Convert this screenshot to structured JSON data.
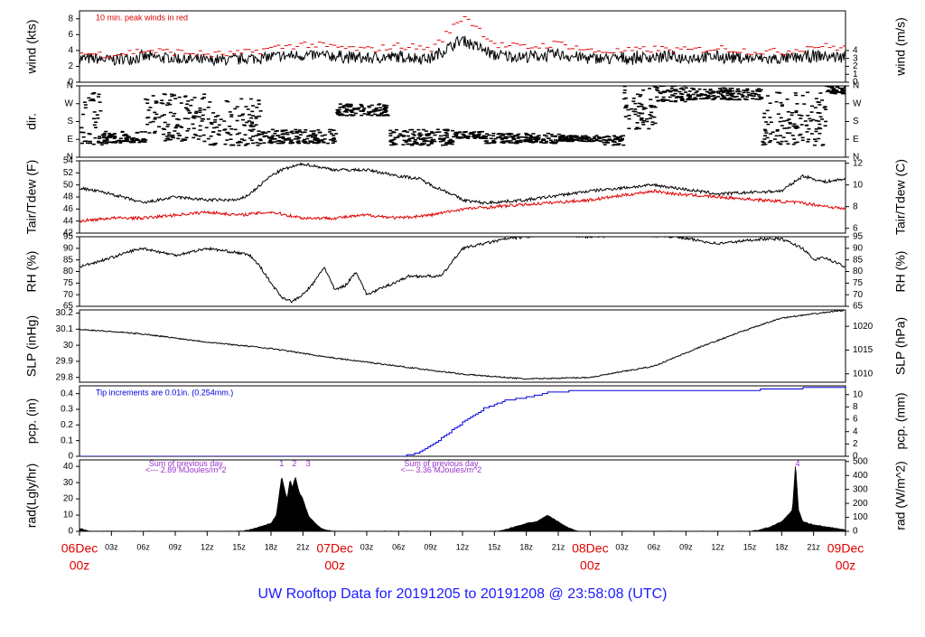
{
  "title": "UW Rooftop Data for 20191205  to  20191208 @ 23:58:08  (UTC)",
  "colors": {
    "text": "#000000",
    "red": "#e00000",
    "blue": "#0000dd",
    "purple": "#9933cc",
    "title": "#1a1aff"
  },
  "time_axis": {
    "hours_total": 72,
    "ticks": [
      {
        "h": 0,
        "l1": "06Dec",
        "l2": "00z",
        "major": true
      },
      {
        "h": 3,
        "l1": "03z"
      },
      {
        "h": 6,
        "l1": "06z"
      },
      {
        "h": 9,
        "l1": "09z"
      },
      {
        "h": 12,
        "l1": "12z"
      },
      {
        "h": 15,
        "l1": "15z"
      },
      {
        "h": 18,
        "l1": "18z"
      },
      {
        "h": 21,
        "l1": "21z"
      },
      {
        "h": 24,
        "l1": "07Dec",
        "l2": "00z",
        "major": true
      },
      {
        "h": 27,
        "l1": "03z"
      },
      {
        "h": 30,
        "l1": "06z"
      },
      {
        "h": 33,
        "l1": "09z"
      },
      {
        "h": 36,
        "l1": "12z"
      },
      {
        "h": 39,
        "l1": "15z"
      },
      {
        "h": 42,
        "l1": "18z"
      },
      {
        "h": 45,
        "l1": "21z"
      },
      {
        "h": 48,
        "l1": "08Dec",
        "l2": "00z",
        "major": true
      },
      {
        "h": 51,
        "l1": "03z"
      },
      {
        "h": 54,
        "l1": "06z"
      },
      {
        "h": 57,
        "l1": "09z"
      },
      {
        "h": 60,
        "l1": "12z"
      },
      {
        "h": 63,
        "l1": "15z"
      },
      {
        "h": 66,
        "l1": "18z"
      },
      {
        "h": 69,
        "l1": "21z"
      },
      {
        "h": 72,
        "l1": "09Dec",
        "l2": "00z",
        "major": true
      }
    ]
  },
  "chart_data": [
    {
      "type": "line",
      "id": "wind",
      "ylabel_left": "wind (kts)",
      "ylabel_right": "wind (m/s)",
      "ylim": [
        0,
        9
      ],
      "left_ticks": [
        0,
        2,
        4,
        6,
        8
      ],
      "right_ticks": [
        {
          "v": 0,
          "l": "0"
        },
        {
          "v": 1,
          "l": "1"
        },
        {
          "v": 2,
          "l": "2"
        },
        {
          "v": 3,
          "l": "3"
        },
        {
          "v": 4,
          "l": "4"
        }
      ],
      "annotation": "10 min. peak winds in red",
      "series": [
        {
          "color": "#000000",
          "x": [
            0,
            3,
            6,
            9,
            12,
            15,
            18,
            21,
            24,
            27,
            30,
            33,
            36,
            39,
            42,
            45,
            48,
            51,
            54,
            57,
            60,
            63,
            66,
            69,
            72
          ],
          "y": [
            3.0,
            2.8,
            3.2,
            3.0,
            2.7,
            2.9,
            3.2,
            3.4,
            3.3,
            3.0,
            3.2,
            3.0,
            5.4,
            3.4,
            3.2,
            3.5,
            3.0,
            3.0,
            3.2,
            3.1,
            3.2,
            3.0,
            2.9,
            3.3,
            3.2
          ]
        },
        {
          "color": "#e00000",
          "x": [
            0,
            3,
            6,
            9,
            12,
            15,
            18,
            21,
            24,
            27,
            30,
            33,
            36,
            39,
            42,
            45,
            48,
            51,
            54,
            57,
            60,
            63,
            66,
            69,
            72
          ],
          "y": [
            3.6,
            3.5,
            4.0,
            3.8,
            3.5,
            3.6,
            4.3,
            4.8,
            4.4,
            4.1,
            4.6,
            4.2,
            8.4,
            4.7,
            4.4,
            4.9,
            3.9,
            3.9,
            4.2,
            4.0,
            4.3,
            3.9,
            3.8,
            4.6,
            4.3
          ]
        }
      ]
    },
    {
      "type": "scatter",
      "id": "dir",
      "ylabel_left": "dir.",
      "ylim": [
        0,
        360
      ],
      "left_ticks": [
        {
          "v": 0,
          "l": "N"
        },
        {
          "v": 90,
          "l": "E"
        },
        {
          "v": 180,
          "l": "S"
        },
        {
          "v": 270,
          "l": "W"
        },
        {
          "v": 360,
          "l": "N"
        }
      ],
      "right_ticks": [
        {
          "v": 0,
          "l": "N"
        },
        {
          "v": 90,
          "l": "E"
        },
        {
          "v": 180,
          "l": "S"
        },
        {
          "v": 270,
          "l": "W"
        },
        {
          "v": 360,
          "l": "N"
        }
      ],
      "segments": [
        [
          0,
          2,
          60,
          340
        ],
        [
          2,
          6,
          70,
          130
        ],
        [
          6,
          12,
          80,
          320
        ],
        [
          12,
          17,
          60,
          300
        ],
        [
          17,
          24,
          70,
          140
        ],
        [
          24,
          29,
          210,
          270
        ],
        [
          29,
          35,
          60,
          140
        ],
        [
          35,
          38,
          95,
          130
        ],
        [
          38,
          45,
          70,
          120
        ],
        [
          45,
          49,
          80,
          110
        ],
        [
          49,
          51,
          60,
          110
        ],
        [
          51,
          54,
          140,
          360
        ],
        [
          54,
          57,
          280,
          360
        ],
        [
          57,
          64,
          290,
          350
        ],
        [
          64,
          70,
          60,
          330
        ],
        [
          70,
          72,
          320,
          360
        ]
      ]
    },
    {
      "type": "line",
      "id": "temp",
      "ylabel_left": "Tair/Tdew (F)",
      "ylabel_right": "Tair/Tdew (C)",
      "ylim": [
        42,
        54
      ],
      "left_ticks": [
        42,
        44,
        46,
        48,
        50,
        52,
        54
      ],
      "right_ticks": [
        {
          "v": 42.8,
          "l": "6"
        },
        {
          "v": 46.4,
          "l": "8"
        },
        {
          "v": 50,
          "l": "10"
        },
        {
          "v": 53.6,
          "l": "12"
        }
      ],
      "series": [
        {
          "name": "Tair",
          "color": "#000000",
          "x": [
            0,
            3,
            6,
            9,
            12,
            15,
            16,
            18,
            19,
            21,
            24,
            27,
            30,
            32,
            33,
            35,
            36,
            38,
            42,
            48,
            54,
            58,
            60,
            66,
            68,
            70,
            72
          ],
          "y": [
            49.5,
            48.5,
            47.0,
            48.0,
            47.5,
            47.5,
            48.5,
            51.5,
            52.5,
            53.5,
            52.5,
            52.5,
            51.5,
            51.0,
            50.0,
            48.5,
            47.5,
            47.0,
            47.5,
            49.0,
            50.0,
            49.0,
            48.5,
            49.0,
            51.5,
            50.5,
            51.0
          ]
        },
        {
          "name": "Tdew",
          "color": "#e00000",
          "x": [
            0,
            3,
            6,
            9,
            12,
            15,
            18,
            21,
            24,
            27,
            30,
            33,
            36,
            40,
            44,
            48,
            52,
            54,
            56,
            60,
            64,
            68,
            70,
            72
          ],
          "y": [
            44.0,
            44.5,
            44.5,
            45.0,
            45.5,
            45.0,
            45.5,
            44.5,
            44.5,
            45.0,
            44.5,
            45.0,
            46.0,
            46.5,
            47.0,
            47.5,
            48.5,
            49.0,
            48.5,
            48.0,
            47.5,
            47.0,
            46.5,
            46.0
          ]
        }
      ]
    },
    {
      "type": "line",
      "id": "rh",
      "ylabel_left": "RH (%)",
      "ylabel_right": "RH (%)",
      "ylim": [
        65,
        95
      ],
      "left_ticks": [
        65,
        70,
        75,
        80,
        85,
        90,
        95
      ],
      "right_ticks": [
        {
          "v": 65,
          "l": "65"
        },
        {
          "v": 70,
          "l": "70"
        },
        {
          "v": 75,
          "l": "75"
        },
        {
          "v": 80,
          "l": "80"
        },
        {
          "v": 85,
          "l": "85"
        },
        {
          "v": 90,
          "l": "90"
        },
        {
          "v": 95,
          "l": "95"
        }
      ],
      "series": [
        {
          "color": "#000000",
          "x": [
            0,
            3,
            5,
            6,
            9,
            12,
            15,
            16,
            17,
            18,
            19,
            20,
            21,
            22,
            23,
            24,
            25,
            26,
            27,
            29,
            30,
            31,
            34,
            36,
            40,
            44,
            48,
            52,
            56,
            60,
            64,
            66,
            68,
            69,
            70,
            71,
            72
          ],
          "y": [
            82,
            86,
            89,
            90,
            87,
            90,
            88,
            87,
            82,
            75,
            69,
            67,
            70,
            75,
            82,
            72,
            74,
            80,
            70,
            74,
            76,
            78,
            78,
            90,
            94,
            96,
            95,
            96,
            95,
            92,
            94,
            94,
            90,
            85,
            86,
            84,
            82
          ]
        }
      ]
    },
    {
      "type": "line",
      "id": "slp",
      "ylabel_left": "SLP (inHg)",
      "ylabel_right": "SLP (hPa)",
      "ylim": [
        29.77,
        30.22
      ],
      "left_ticks": [
        29.8,
        29.9,
        30.0,
        30.1,
        30.2
      ],
      "right_ticks": [
        {
          "v": 29.822,
          "l": "1010"
        },
        {
          "v": 29.97,
          "l": "1015"
        },
        {
          "v": 30.118,
          "l": "1020"
        }
      ],
      "series": [
        {
          "color": "#000000",
          "x": [
            0,
            6,
            12,
            18,
            24,
            30,
            36,
            42,
            48,
            54,
            58,
            62,
            66,
            72
          ],
          "y": [
            30.1,
            30.07,
            30.02,
            29.98,
            29.92,
            29.87,
            29.82,
            29.79,
            29.8,
            29.87,
            29.98,
            30.08,
            30.17,
            30.22
          ]
        }
      ]
    },
    {
      "type": "line",
      "id": "pcp",
      "ylabel_left": "pcp. (in)",
      "ylabel_right": "pcp. (mm)",
      "ylim": [
        0,
        0.45
      ],
      "left_ticks": [
        0,
        0.1,
        0.2,
        0.3,
        0.4
      ],
      "right_ticks": [
        {
          "v": 0,
          "l": "0"
        },
        {
          "v": 0.0787,
          "l": "2"
        },
        {
          "v": 0.1575,
          "l": "4"
        },
        {
          "v": 0.2362,
          "l": "6"
        },
        {
          "v": 0.315,
          "l": "8"
        },
        {
          "v": 0.3937,
          "l": "10"
        }
      ],
      "annotation": "Tip increments are 0.01in. (0.254mm.)",
      "series": [
        {
          "color": "#0000dd",
          "x": [
            0,
            30,
            32,
            34,
            36,
            38,
            40,
            42,
            44,
            46,
            48,
            50,
            52,
            56,
            60,
            64,
            68,
            72
          ],
          "y": [
            0,
            0,
            0.03,
            0.12,
            0.22,
            0.31,
            0.36,
            0.38,
            0.41,
            0.42,
            0.42,
            0.42,
            0.42,
            0.42,
            0.42,
            0.43,
            0.44,
            0.44
          ]
        }
      ]
    },
    {
      "type": "area",
      "id": "rad",
      "ylabel_left": "rad(Lgly/hr)",
      "ylabel_right": "rad (W/m^2)",
      "ylim": [
        0,
        44
      ],
      "left_ticks": [
        0,
        10,
        20,
        30,
        40
      ],
      "right_ticks": [
        {
          "v": 0,
          "l": "0"
        },
        {
          "v": 8.6,
          "l": "100"
        },
        {
          "v": 17.2,
          "l": "200"
        },
        {
          "v": 25.8,
          "l": "300"
        },
        {
          "v": 34.4,
          "l": "400"
        },
        {
          "v": 43,
          "l": "500"
        }
      ],
      "annotations": [
        {
          "text": "Sum of previous day",
          "h": 10,
          "v": 41.5
        },
        {
          "text": "<--- 2.89 MJoules/m^2",
          "h": 10,
          "v": 37.5
        },
        {
          "text": "Sum of previous day",
          "h": 34,
          "v": 41.5
        },
        {
          "text": "<--- 3.36 MJoules/m^2",
          "h": 34,
          "v": 37.5
        },
        {
          "text": "1",
          "h": 19,
          "v": 41.5
        },
        {
          "text": "2",
          "h": 20.2,
          "v": 41.5
        },
        {
          "text": "3",
          "h": 21.5,
          "v": 41.5
        },
        {
          "text": "4",
          "h": 67.5,
          "v": 41.5
        }
      ],
      "series": [
        {
          "color": "#000000",
          "x": [
            0,
            0.5,
            1,
            15,
            16,
            17,
            18,
            18.5,
            19,
            19.5,
            19.8,
            20,
            20.3,
            20.6,
            21,
            21.5,
            22,
            22.5,
            23,
            24,
            39,
            40,
            41,
            42,
            43,
            44,
            45,
            46,
            47,
            63,
            64,
            65,
            66,
            67,
            67.3,
            67.6,
            68,
            69,
            70,
            71,
            72
          ],
          "y": [
            2,
            1,
            0,
            0,
            1,
            3,
            5,
            10,
            34,
            20,
            32,
            27,
            34,
            25,
            20,
            10,
            6,
            3,
            1,
            0,
            0,
            1,
            3,
            5,
            6,
            10,
            6,
            2,
            0,
            0,
            1,
            3,
            6,
            13,
            42,
            13,
            6,
            4,
            3,
            2,
            1
          ]
        }
      ]
    }
  ]
}
